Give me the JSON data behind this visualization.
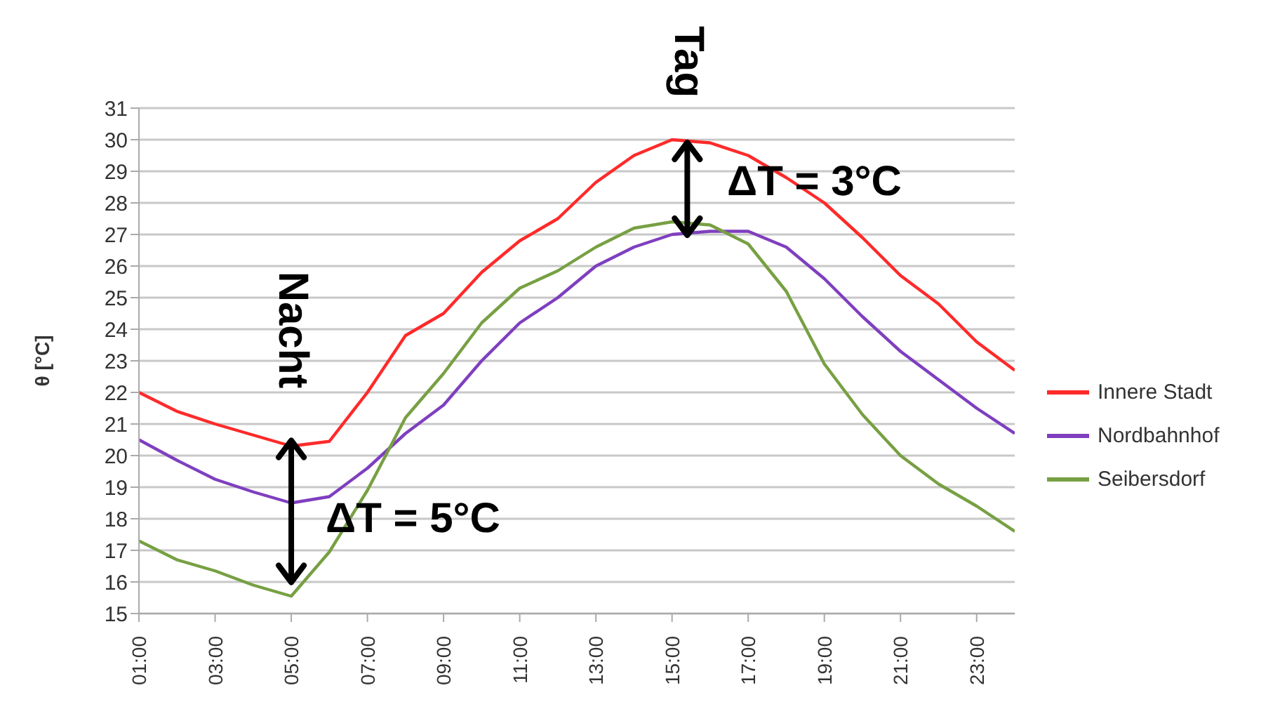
{
  "chart_data": {
    "type": "line",
    "ylabel": "θ [°C]",
    "x": [
      1,
      2,
      3,
      4,
      5,
      6,
      7,
      8,
      9,
      10,
      11,
      12,
      13,
      14,
      15,
      16,
      17,
      18,
      19,
      20,
      21,
      22,
      23,
      24
    ],
    "series": [
      {
        "name": "Innere Stadt",
        "color": "#ff2a2a",
        "values": [
          22.0,
          21.4,
          21.0,
          20.65,
          20.3,
          20.45,
          22.0,
          23.8,
          24.5,
          25.8,
          26.8,
          27.5,
          28.65,
          29.5,
          30.0,
          29.9,
          29.5,
          28.8,
          28.0,
          26.9,
          25.7,
          24.8,
          23.6,
          22.7
        ]
      },
      {
        "name": "Nordbahnhof",
        "color": "#7f3fbf",
        "values": [
          20.5,
          19.85,
          19.25,
          18.85,
          18.5,
          18.7,
          19.6,
          20.7,
          21.6,
          23.0,
          24.2,
          25.0,
          26.0,
          26.6,
          27.0,
          27.1,
          27.1,
          26.6,
          25.6,
          24.4,
          23.3,
          22.4,
          21.5,
          20.7
        ]
      },
      {
        "name": "Seibersdorf",
        "color": "#77a043",
        "values": [
          17.3,
          16.7,
          16.35,
          15.9,
          15.55,
          16.95,
          18.9,
          21.2,
          22.6,
          24.2,
          25.3,
          25.85,
          26.6,
          27.2,
          27.4,
          27.3,
          26.7,
          25.2,
          22.9,
          21.3,
          20.0,
          19.1,
          18.4,
          17.6
        ]
      }
    ],
    "xlim": [
      1,
      24
    ],
    "xticks": [
      {
        "value": 1,
        "label": "01:00"
      },
      {
        "value": 3,
        "label": "03:00"
      },
      {
        "value": 5,
        "label": "05:00"
      },
      {
        "value": 7,
        "label": "07:00"
      },
      {
        "value": 9,
        "label": "09:00"
      },
      {
        "value": 11,
        "label": "11:00"
      },
      {
        "value": 13,
        "label": "13:00"
      },
      {
        "value": 15,
        "label": "15:00"
      },
      {
        "value": 17,
        "label": "17:00"
      },
      {
        "value": 19,
        "label": "19:00"
      },
      {
        "value": 21,
        "label": "21:00"
      },
      {
        "value": 23,
        "label": "23:00"
      }
    ],
    "ylim": [
      15,
      31
    ],
    "yticks": [
      15,
      16,
      17,
      18,
      19,
      20,
      21,
      22,
      23,
      24,
      25,
      26,
      27,
      28,
      29,
      30,
      31
    ],
    "grid": "y",
    "legend": "right",
    "marker": "none",
    "line_style": "solid",
    "annotations": [
      {
        "text": "Tag",
        "x": 15.4,
        "y": 30
      },
      {
        "text": "Nacht",
        "x": 5,
        "y": 20.3
      },
      "ΔT = 5°C",
      "ΔT = 3°C"
    ]
  }
}
